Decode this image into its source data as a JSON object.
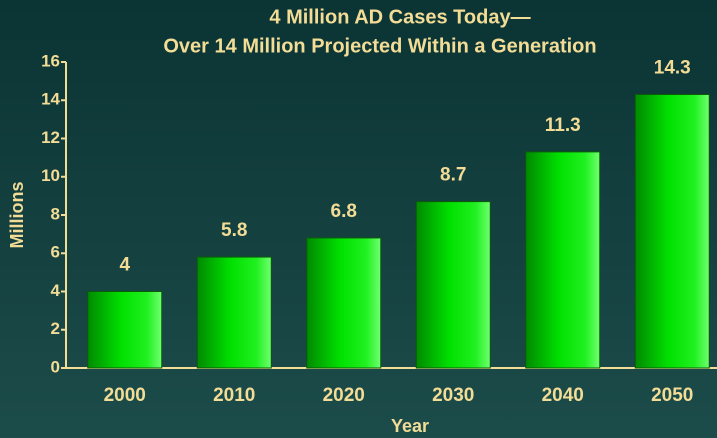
{
  "chart_data": {
    "type": "bar",
    "title": [
      "4 Million AD Cases Today—",
      "Over 14 Million Projected Within a Generation"
    ],
    "categories": [
      "2000",
      "2010",
      "2020",
      "2030",
      "2040",
      "2050"
    ],
    "values": [
      4,
      5.8,
      6.8,
      8.7,
      11.3,
      14.3
    ],
    "color": "#00d000",
    "x_label": "Year",
    "y_label": "Millions",
    "ylim": [
      0,
      16
    ],
    "yticks": [
      0,
      2,
      4,
      6,
      8,
      10,
      12,
      14,
      16
    ],
    "grid": false
  }
}
